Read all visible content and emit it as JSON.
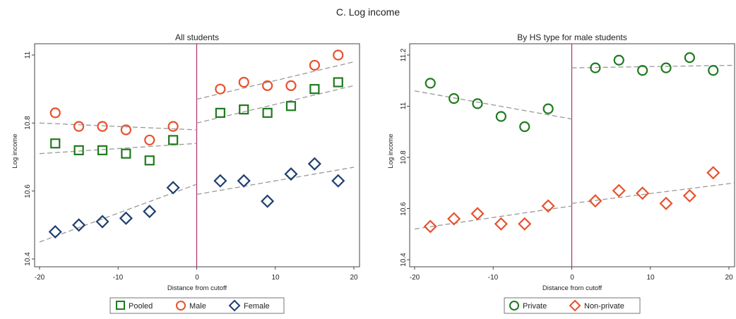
{
  "figure_title": "C. Log income",
  "chart_data": [
    {
      "type": "scatter",
      "title": "All students",
      "xlabel": "Distance from cutoff",
      "ylabel": "Log income",
      "xlim": [
        -21,
        21
      ],
      "ylim": [
        10.38,
        11.04
      ],
      "xticks": [
        "-20",
        "-10",
        "0",
        "10",
        "20"
      ],
      "yticks": [
        "10.4",
        "10.6",
        "10.8",
        "11"
      ],
      "cutoff": 0,
      "grid": false,
      "legend": "bottom",
      "series": [
        {
          "name": "Pooled",
          "marker": "square",
          "color": "#1f7a1f",
          "x": [
            -18,
            -15,
            -12,
            -9,
            -6,
            -3,
            3,
            6,
            9,
            12,
            15,
            18
          ],
          "y": [
            10.74,
            10.72,
            10.72,
            10.71,
            10.69,
            10.75,
            10.83,
            10.84,
            10.83,
            10.85,
            10.9,
            10.92
          ],
          "fit_left": [
            [
              -20,
              10.71
            ],
            [
              0,
              10.74
            ]
          ],
          "fit_right": [
            [
              0,
              10.8
            ],
            [
              20,
              10.91
            ]
          ]
        },
        {
          "name": "Male",
          "marker": "circle",
          "color": "#e8512c",
          "x": [
            -18,
            -15,
            -12,
            -9,
            -6,
            -3,
            3,
            6,
            9,
            12,
            15,
            18
          ],
          "y": [
            10.83,
            10.79,
            10.79,
            10.78,
            10.75,
            10.79,
            10.9,
            10.92,
            10.91,
            10.91,
            10.97,
            11.0
          ],
          "fit_left": [
            [
              -20,
              10.8
            ],
            [
              0,
              10.78
            ]
          ],
          "fit_right": [
            [
              0,
              10.87
            ],
            [
              20,
              10.98
            ]
          ]
        },
        {
          "name": "Female",
          "marker": "diamond",
          "color": "#1f3f6e",
          "x": [
            -18,
            -15,
            -12,
            -9,
            -6,
            -3,
            3,
            6,
            9,
            12,
            15,
            18
          ],
          "y": [
            10.48,
            10.5,
            10.51,
            10.52,
            10.54,
            10.61,
            10.63,
            10.63,
            10.57,
            10.65,
            10.68,
            10.63
          ],
          "fit_left": [
            [
              -20,
              10.45
            ],
            [
              0,
              10.62
            ]
          ],
          "fit_right": [
            [
              0,
              10.59
            ],
            [
              20,
              10.67
            ]
          ]
        }
      ]
    },
    {
      "type": "scatter",
      "title": "By HS type for male students",
      "xlabel": "Distance from cutoff",
      "ylabel": "Log income",
      "xlim": [
        -21,
        21
      ],
      "ylim": [
        10.38,
        11.24
      ],
      "xticks": [
        "-20",
        "-10",
        "0",
        "10",
        "20"
      ],
      "yticks": [
        "10.4",
        "10.6",
        "10.8",
        "11",
        "11.2"
      ],
      "cutoff": 0,
      "grid": false,
      "legend": "bottom",
      "series": [
        {
          "name": "Private",
          "marker": "circle",
          "color": "#1f7a1f",
          "x": [
            -18,
            -15,
            -12,
            -9,
            -6,
            -3,
            3,
            6,
            9,
            12,
            15,
            18
          ],
          "y": [
            11.09,
            11.03,
            11.01,
            10.96,
            10.92,
            10.99,
            11.15,
            11.18,
            11.14,
            11.15,
            11.19,
            11.14
          ],
          "fit_left": [
            [
              -20,
              11.06
            ],
            [
              0,
              10.95
            ]
          ],
          "fit_right": [
            [
              0,
              11.15
            ],
            [
              21,
              11.16
            ]
          ]
        },
        {
          "name": "Non-private",
          "marker": "diamond",
          "color": "#e8512c",
          "x": [
            -18,
            -15,
            -12,
            -9,
            -6,
            -3,
            3,
            6,
            9,
            12,
            15,
            18
          ],
          "y": [
            10.53,
            10.56,
            10.58,
            10.54,
            10.54,
            10.61,
            10.63,
            10.67,
            10.66,
            10.62,
            10.65,
            10.74
          ],
          "fit_left": [
            [
              -20,
              10.52
            ],
            [
              0,
              10.61
            ]
          ],
          "fit_right": [
            [
              0,
              10.62
            ],
            [
              21,
              10.7
            ]
          ]
        }
      ]
    }
  ]
}
